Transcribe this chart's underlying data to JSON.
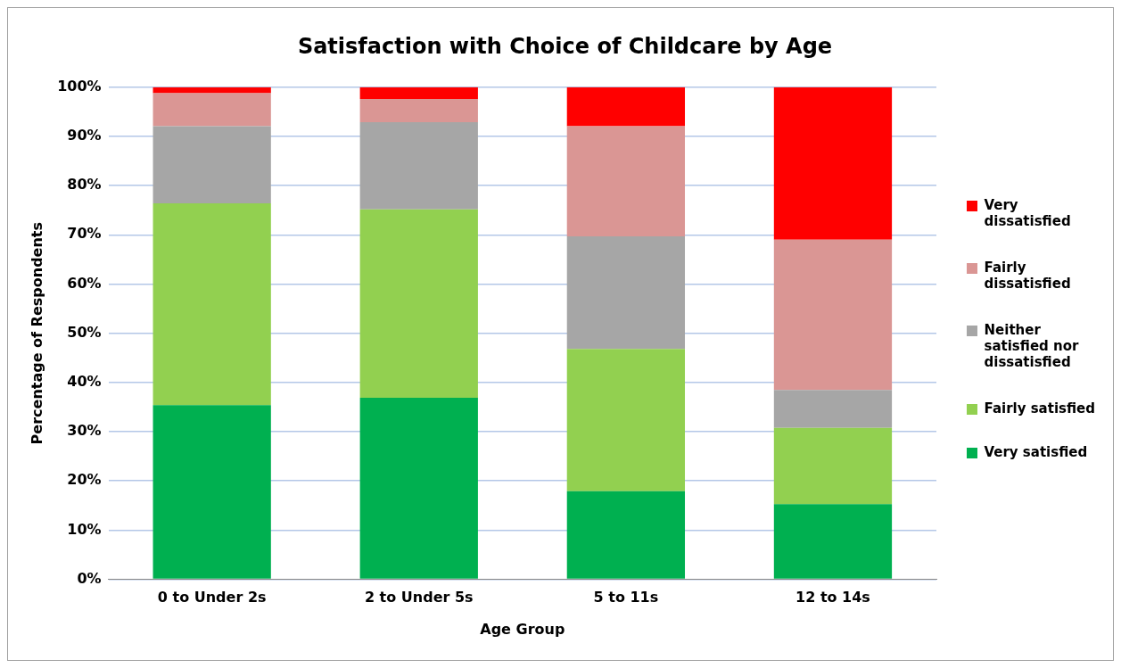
{
  "chart_data": {
    "type": "bar",
    "title": "Satisfaction with Choice of Childcare by Age",
    "xlabel": "Age Group",
    "ylabel": "Percentage of Respondents",
    "categories": [
      "0 to Under 2s",
      "2 to Under 5s",
      "5 to 11s",
      "12 to 14s"
    ],
    "stacked": true,
    "series": [
      {
        "name": "Very satisfied",
        "color": "#00b050",
        "values": [
          35.4,
          36.9,
          17.9,
          15.3
        ]
      },
      {
        "name": "Fairly satisfied",
        "color": "#92d050",
        "values": [
          41.0,
          38.3,
          28.9,
          15.5
        ]
      },
      {
        "name": "Neither satisfied nor dissatisfied",
        "color": "#a6a6a6",
        "values": [
          15.7,
          17.7,
          22.9,
          7.7
        ]
      },
      {
        "name": "Fairly dissatisfied",
        "color": "#da9694",
        "values": [
          6.7,
          4.7,
          22.4,
          30.5
        ]
      },
      {
        "name": "Very dissatisfied",
        "color": "#ff0000",
        "values": [
          1.2,
          2.4,
          7.9,
          31.0
        ]
      }
    ],
    "ylim": [
      0,
      100
    ],
    "yticks": [
      {
        "value": 0,
        "label": "0%"
      },
      {
        "value": 10,
        "label": "10%"
      },
      {
        "value": 20,
        "label": "20%"
      },
      {
        "value": 30,
        "label": "30%"
      },
      {
        "value": 40,
        "label": "40%"
      },
      {
        "value": 50,
        "label": "50%"
      },
      {
        "value": 60,
        "label": "60%"
      },
      {
        "value": 70,
        "label": "70%"
      },
      {
        "value": 80,
        "label": "80%"
      },
      {
        "value": 90,
        "label": "90%"
      },
      {
        "value": 100,
        "label": "100%"
      }
    ],
    "grid": "y",
    "legend": "right"
  }
}
